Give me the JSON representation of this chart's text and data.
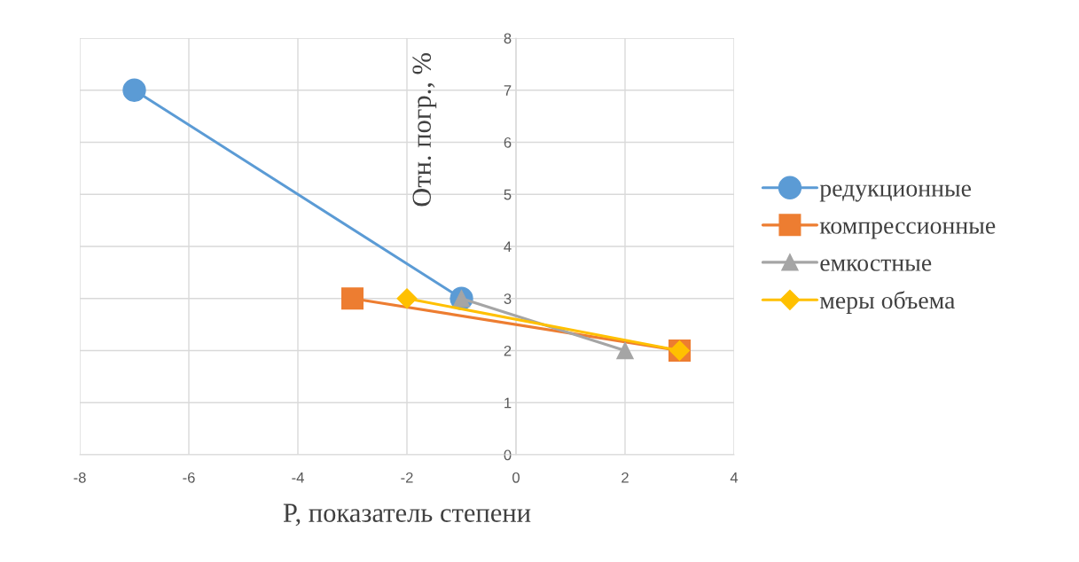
{
  "chart_data": {
    "type": "line",
    "xlabel": "P, показатель степени",
    "ylabel": "Отн. погр., %",
    "series": [
      {
        "name": "редукционные",
        "color": "#5b9bd5",
        "marker": "circle",
        "x": [
          -7,
          -1
        ],
        "values": [
          7,
          3
        ]
      },
      {
        "name": "компрессионные",
        "color": "#ed7d31",
        "marker": "square",
        "x": [
          -3,
          3
        ],
        "values": [
          3,
          2
        ]
      },
      {
        "name": "емкостные",
        "color": "#a5a5a5",
        "marker": "triangle",
        "x": [
          -1,
          2
        ],
        "values": [
          3,
          2
        ]
      },
      {
        "name": "меры объема",
        "color": "#ffc000",
        "marker": "diamond",
        "x": [
          -2,
          3
        ],
        "values": [
          3,
          2
        ]
      }
    ],
    "xlim": [
      -8,
      4
    ],
    "xticks": [
      -8,
      -6,
      -4,
      -2,
      0,
      2,
      4
    ],
    "ylim": [
      0,
      8
    ],
    "yticks": [
      0,
      1,
      2,
      3,
      4,
      5,
      6,
      7,
      8
    ],
    "grid": true,
    "legend": "right",
    "line_style": "solid"
  }
}
